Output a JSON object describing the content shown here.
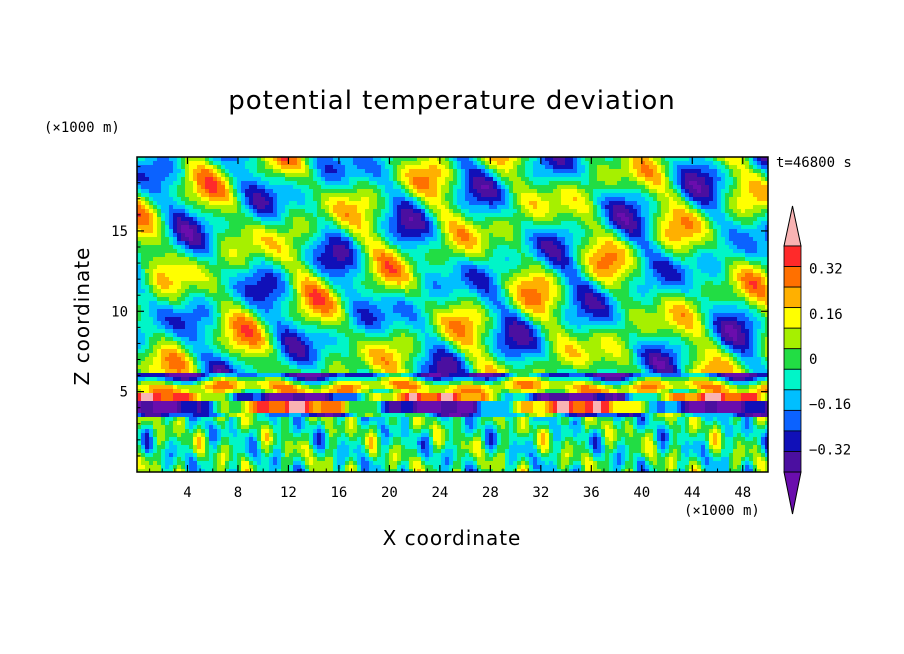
{
  "chart_data": {
    "type": "heatmap",
    "title": "potential temperature deviation",
    "xlabel": "X coordinate",
    "ylabel": "Z coordinate",
    "x_unit": "(×1000 m)",
    "y_unit": "(×1000 m)",
    "time_label": "t=46800 s",
    "xlim": [
      0,
      50
    ],
    "ylim": [
      0,
      19.6
    ],
    "x_ticks": [
      4,
      8,
      12,
      16,
      20,
      24,
      28,
      32,
      36,
      40,
      44,
      48
    ],
    "x_tick_labels": [
      "4",
      "8",
      "12",
      "16",
      "20",
      "24",
      "28",
      "32",
      "36",
      "40",
      "44",
      "48"
    ],
    "y_ticks": [
      5,
      10,
      15
    ],
    "y_tick_labels": [
      "5",
      "10",
      "15"
    ],
    "colorbar": {
      "levels": [
        -0.48,
        -0.4,
        -0.32,
        -0.24,
        -0.16,
        -0.08,
        0,
        0.08,
        0.16,
        0.24,
        0.32,
        0.4,
        0.48
      ],
      "tick_values": [
        -0.32,
        -0.16,
        0,
        0.16,
        0.32
      ],
      "tick_labels": [
        "−0.32",
        "−0.16",
        "0",
        "0.16",
        "0.32"
      ],
      "extend": "both",
      "colors": [
        "#6a0dad",
        "#4b0fa0",
        "#1010b8",
        "#0b62ff",
        "#00bfff",
        "#00f5c8",
        "#22dd44",
        "#a6f000",
        "#ffff00",
        "#ffb000",
        "#ff7000",
        "#ff2a2a",
        "#f9b3b3"
      ]
    }
  }
}
